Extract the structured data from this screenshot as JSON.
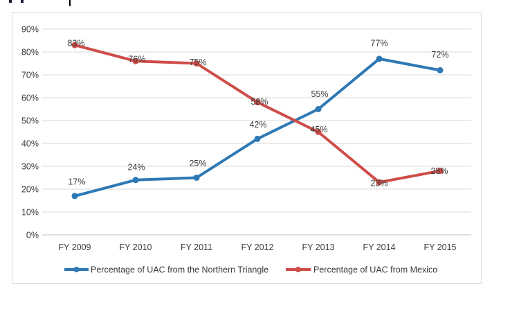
{
  "chart_data": {
    "type": "line",
    "title": "",
    "xlabel": "",
    "ylabel": "",
    "categories": [
      "FY 2009",
      "FY 2010",
      "FY 2011",
      "FY 2012",
      "FY 2013",
      "FY 2014",
      "FY 2015"
    ],
    "series": [
      {
        "name": "Percentage of UAC from the Northern Triangle",
        "color": "#2E79B5",
        "values": [
          17,
          24,
          25,
          42,
          55,
          77,
          72
        ],
        "label_offsets": [
          [
            3,
            -21
          ],
          [
            1,
            -19
          ],
          [
            2,
            -21
          ],
          [
            1,
            -21
          ],
          [
            2,
            -22
          ],
          [
            0,
            -23
          ],
          [
            0,
            -23
          ]
        ]
      },
      {
        "name": "Percentage of UAC from Mexico",
        "color": "#CF4D48",
        "values": [
          83,
          76,
          75,
          58,
          45,
          23,
          28
        ],
        "label_offsets": [
          [
            2,
            -3
          ],
          [
            2,
            -3
          ],
          [
            2,
            -2
          ],
          [
            3,
            -1
          ],
          [
            1,
            -4
          ],
          [
            0,
            1
          ],
          [
            -1,
            0
          ]
        ]
      }
    ],
    "y_axis": {
      "min": 0,
      "max": 90,
      "step": 10,
      "tick_format": "{v}%"
    },
    "y_tick_labels": [
      "0%",
      "10%",
      "20%",
      "30%",
      "40%",
      "50%",
      "60%",
      "70%",
      "80%",
      "90%"
    ],
    "data_label_format": "{v}%",
    "grid": true,
    "legend_position": "bottom",
    "styles": {
      "grid_color": "#d9d9d9",
      "axis_line_color": "#bfbfbf",
      "frame_border_color": "#d9d9d9",
      "text_color": "#3b3b3b",
      "line_width": 4,
      "marker_radius": 4.5
    }
  }
}
